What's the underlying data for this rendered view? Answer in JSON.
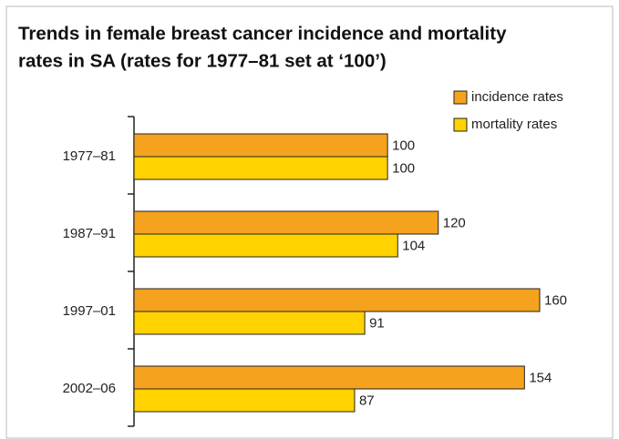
{
  "chart_data": {
    "type": "bar",
    "orientation": "horizontal",
    "title": [
      "Trends in female breast cancer incidence and mortality",
      "rates in SA (rates for 1977–81 set at ‘100’)"
    ],
    "categories": [
      "1977–81",
      "1987–91",
      "1997–01",
      "2002–06"
    ],
    "series": [
      {
        "name": "incidence rates",
        "color": "#f5a21e",
        "values": [
          100,
          120,
          160,
          154
        ]
      },
      {
        "name": "mortality rates",
        "color": "#ffd200",
        "values": [
          100,
          104,
          91,
          87
        ]
      }
    ],
    "legend": "top-right"
  }
}
